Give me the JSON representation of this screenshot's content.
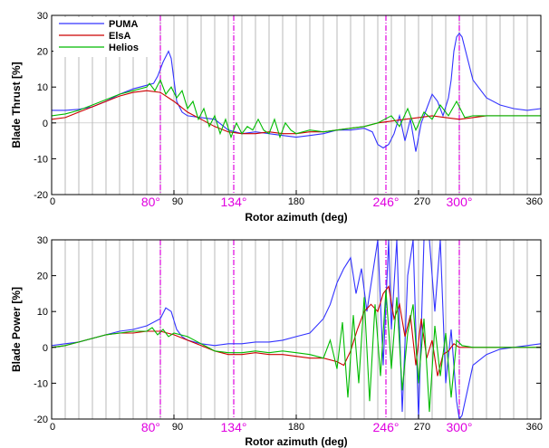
{
  "chart_data": [
    {
      "type": "line",
      "ylabel": "Blade Thrust [%]",
      "xlabel": "Rotor azimuth (deg)",
      "xlim": [
        0,
        360
      ],
      "ylim": [
        -20,
        30
      ],
      "xticks": [
        "0",
        "90",
        "180",
        "270",
        "360"
      ],
      "yticks": [
        "-20",
        "-10",
        "0",
        "10",
        "20",
        "30"
      ],
      "grid": "vertical lines every 10 deg",
      "legend_position": "top-left",
      "highlight_lines": [
        {
          "x": 80,
          "label": "80°"
        },
        {
          "x": 134,
          "label": "134°"
        },
        {
          "x": 246,
          "label": "246°"
        },
        {
          "x": 300,
          "label": "300°"
        }
      ],
      "series": [
        {
          "name": "PUMA",
          "color": "#3333ff",
          "x": [
            0,
            10,
            20,
            30,
            40,
            50,
            60,
            70,
            75,
            78,
            82,
            86,
            88,
            92,
            96,
            100,
            110,
            120,
            130,
            140,
            150,
            160,
            170,
            180,
            190,
            200,
            210,
            220,
            230,
            236,
            240,
            244,
            248,
            252,
            256,
            260,
            264,
            268,
            272,
            276,
            280,
            284,
            288,
            292,
            294,
            296,
            298,
            300,
            302,
            306,
            310,
            320,
            330,
            340,
            350,
            360
          ],
          "y": [
            3.5,
            3.5,
            3.8,
            4.5,
            6,
            8,
            9.5,
            10.5,
            11,
            13,
            17,
            20,
            18,
            6,
            3,
            2,
            1.5,
            1,
            -2,
            -3,
            -2.5,
            -3,
            -3.5,
            -4,
            -3.5,
            -3,
            -2,
            -2,
            -1.5,
            -2.5,
            -6,
            -7,
            -6,
            -3,
            2,
            -5,
            1,
            -8,
            0,
            4,
            8,
            6,
            2,
            7,
            12,
            20,
            24,
            25,
            24,
            18,
            12,
            7,
            5,
            4,
            3.5,
            4
          ]
        },
        {
          "name": "ElsA",
          "color": "#cc0000",
          "x": [
            0,
            10,
            20,
            30,
            40,
            50,
            60,
            70,
            80,
            90,
            100,
            110,
            120,
            130,
            140,
            150,
            160,
            170,
            180,
            190,
            200,
            210,
            220,
            230,
            240,
            250,
            260,
            270,
            280,
            290,
            300,
            310,
            320,
            330,
            340,
            350,
            360
          ],
          "y": [
            1,
            1.5,
            3,
            4.5,
            6,
            7.5,
            8.5,
            9,
            8.5,
            6,
            3,
            1,
            -1,
            -2.5,
            -3,
            -3,
            -2.5,
            -3,
            -3,
            -2.5,
            -2.5,
            -2,
            -1.5,
            -1,
            0,
            0.5,
            1,
            1.5,
            2,
            1.5,
            1,
            1.5,
            2,
            2,
            2,
            2,
            2
          ]
        },
        {
          "name": "Helios",
          "color": "#00bb00",
          "x": [
            0,
            10,
            20,
            30,
            40,
            50,
            60,
            70,
            72,
            76,
            80,
            84,
            88,
            92,
            96,
            100,
            104,
            108,
            112,
            116,
            120,
            124,
            128,
            132,
            136,
            140,
            144,
            148,
            152,
            156,
            160,
            164,
            168,
            172,
            176,
            180,
            190,
            200,
            210,
            220,
            230,
            240,
            250,
            256,
            262,
            268,
            274,
            280,
            286,
            292,
            298,
            304,
            310,
            320,
            330,
            340,
            350,
            360
          ],
          "y": [
            2,
            2.5,
            3.5,
            5,
            6.5,
            8,
            9,
            10,
            11,
            9,
            12,
            8,
            10,
            7,
            9,
            4,
            6,
            1,
            4,
            -1,
            2,
            -3,
            1,
            -4,
            0,
            -3,
            -1,
            -2,
            1,
            -2,
            -3,
            1,
            -4,
            0,
            -2,
            -3,
            -2,
            -2.5,
            -2,
            -1.5,
            -1,
            0,
            2,
            -1,
            4,
            -2,
            3,
            1,
            5,
            2,
            6,
            1.5,
            2,
            2,
            2,
            2,
            2,
            2
          ]
        }
      ]
    },
    {
      "type": "line",
      "ylabel": "Blade Power [%]",
      "xlabel": "Rotor azimuth (deg)",
      "xlim": [
        0,
        360
      ],
      "ylim": [
        -20,
        30
      ],
      "xticks": [
        "0",
        "90",
        "180",
        "270",
        "360"
      ],
      "yticks": [
        "-20",
        "-10",
        "0",
        "10",
        "20",
        "30"
      ],
      "grid": "vertical lines every 10 deg",
      "highlight_lines": [
        {
          "x": 80,
          "label": "80°"
        },
        {
          "x": 134,
          "label": "134°"
        },
        {
          "x": 246,
          "label": "246°"
        },
        {
          "x": 300,
          "label": "300°"
        }
      ],
      "series": [
        {
          "name": "PUMA",
          "color": "#3333ff",
          "x": [
            0,
            10,
            20,
            30,
            40,
            50,
            60,
            70,
            80,
            84,
            88,
            92,
            96,
            100,
            110,
            120,
            130,
            140,
            150,
            160,
            170,
            180,
            190,
            200,
            205,
            210,
            215,
            220,
            224,
            228,
            232,
            236,
            240,
            244,
            248,
            250,
            254,
            258,
            262,
            266,
            270,
            274,
            278,
            282,
            286,
            290,
            294,
            298,
            300,
            302,
            306,
            310,
            320,
            330,
            340,
            350,
            360
          ],
          "y": [
            0.5,
            1,
            1.5,
            2.5,
            3.5,
            4.5,
            5,
            6,
            8,
            11,
            10,
            5,
            3,
            2,
            1,
            0.5,
            1,
            1,
            1.5,
            1.5,
            2,
            3,
            4,
            8,
            12,
            18,
            22,
            25,
            15,
            22,
            10,
            20,
            30,
            -5,
            30,
            5,
            30,
            -18,
            20,
            30,
            -20,
            30,
            30,
            10,
            30,
            -10,
            5,
            -15,
            -20,
            -19,
            -12,
            -5,
            -2,
            -0.5,
            0,
            0.5,
            1
          ]
        },
        {
          "name": "ElsA",
          "color": "#cc0000",
          "x": [
            0,
            10,
            20,
            30,
            40,
            50,
            60,
            70,
            80,
            90,
            100,
            110,
            120,
            130,
            140,
            150,
            160,
            170,
            180,
            190,
            200,
            210,
            215,
            220,
            225,
            230,
            235,
            240,
            244,
            248,
            252,
            256,
            260,
            264,
            268,
            272,
            276,
            280,
            284,
            288,
            292,
            296,
            300,
            310,
            320,
            330,
            340,
            350,
            360
          ],
          "y": [
            0,
            0.5,
            1.5,
            2.5,
            3.5,
            4,
            4,
            4.5,
            4.5,
            3.5,
            2,
            0.5,
            -1,
            -2,
            -2,
            -1.5,
            -2,
            -2,
            -2.5,
            -3,
            -3,
            -4,
            -5,
            -1,
            5,
            10,
            12,
            10,
            15,
            17,
            8,
            12,
            3,
            9,
            -5,
            8,
            -3,
            2,
            -8,
            -2,
            -1,
            1,
            0,
            0,
            0,
            0,
            0,
            0,
            0
          ]
        },
        {
          "name": "Helios",
          "color": "#00bb00",
          "x": [
            0,
            10,
            20,
            30,
            40,
            50,
            60,
            70,
            74,
            78,
            82,
            86,
            90,
            100,
            110,
            120,
            130,
            140,
            150,
            160,
            170,
            180,
            190,
            200,
            205,
            210,
            214,
            218,
            222,
            226,
            230,
            234,
            238,
            242,
            246,
            250,
            254,
            258,
            262,
            266,
            270,
            274,
            278,
            282,
            286,
            290,
            294,
            298,
            302,
            310,
            320,
            330,
            340,
            350,
            360
          ],
          "y": [
            0,
            0.5,
            1.5,
            2.5,
            3.5,
            4,
            4.5,
            4.5,
            5.5,
            3.5,
            5,
            3,
            4,
            3,
            1,
            -1,
            -1.5,
            -1.5,
            -1,
            -1.5,
            -1,
            -1.5,
            -2,
            -3,
            2,
            -6,
            7,
            -14,
            9,
            -10,
            14,
            -15,
            12,
            -8,
            16,
            -6,
            14,
            -12,
            4,
            12,
            -10,
            8,
            -18,
            6,
            -8,
            4,
            -14,
            2,
            0.5,
            0,
            0,
            0,
            0,
            0,
            0
          ]
        }
      ]
    }
  ]
}
